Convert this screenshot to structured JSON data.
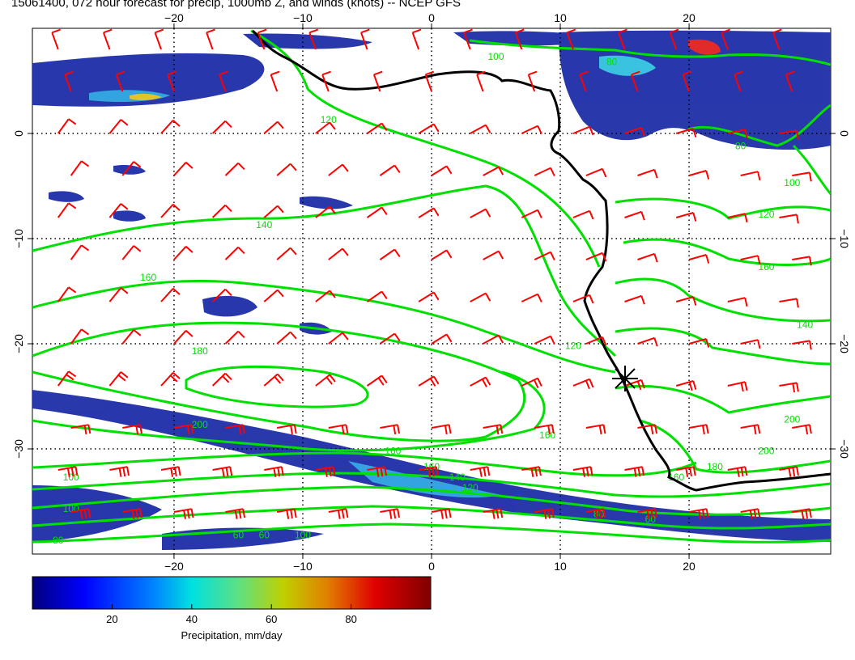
{
  "title": "15061400, 072 hour forecast for precip, 1000mb Z, and winds (knots) -- NCEP GFS",
  "map": {
    "lon_range": [
      -31,
      31
    ],
    "lat_range": [
      -40,
      10
    ],
    "x_ticks": [
      -20,
      -10,
      0,
      10,
      20
    ],
    "y_ticks": [
      0,
      -10,
      -20,
      -30
    ],
    "x_tick_labels": [
      "−20",
      "−10",
      "0",
      "10",
      "20"
    ],
    "y_tick_labels": [
      "0",
      "−10",
      "−20",
      "−30"
    ],
    "grid": "dotted",
    "coastline_color": "#000000",
    "contour_color": "#00e000",
    "wind_barb_color": "#ff0000",
    "marker": {
      "type": "star",
      "lon": 15,
      "lat": -23.5
    }
  },
  "contours": {
    "labels": [
      {
        "text": "120",
        "lon": -8,
        "lat": 1
      },
      {
        "text": "140",
        "lon": -13,
        "lat": -9
      },
      {
        "text": "160",
        "lon": -22,
        "lat": -14
      },
      {
        "text": "180",
        "lon": -18,
        "lat": -21
      },
      {
        "text": "200",
        "lon": -18,
        "lat": -28
      },
      {
        "text": "160",
        "lon": 9,
        "lat": -29
      },
      {
        "text": "120",
        "lon": 11,
        "lat": -20.5
      },
      {
        "text": "160",
        "lon": -3,
        "lat": -30.5
      },
      {
        "text": "160",
        "lon": 0,
        "lat": -32
      },
      {
        "text": "140",
        "lon": 2,
        "lat": -33
      },
      {
        "text": "120",
        "lon": 3,
        "lat": -34
      },
      {
        "text": "100",
        "lon": -28,
        "lat": -33
      },
      {
        "text": "100",
        "lon": -28,
        "lat": -36
      },
      {
        "text": "80",
        "lon": -29,
        "lat": -39
      },
      {
        "text": "60",
        "lon": -15,
        "lat": -38.5
      },
      {
        "text": "60",
        "lon": -13,
        "lat": -38.5
      },
      {
        "text": "100",
        "lon": -10,
        "lat": -38.5
      },
      {
        "text": "80",
        "lon": 13,
        "lat": -36.5
      },
      {
        "text": "60",
        "lon": 17,
        "lat": -37
      },
      {
        "text": "160",
        "lon": 19,
        "lat": -33
      },
      {
        "text": "180",
        "lon": 22,
        "lat": -32
      },
      {
        "text": "200",
        "lon": 26,
        "lat": -30.5
      },
      {
        "text": "200",
        "lon": 28,
        "lat": -27.5
      },
      {
        "text": "160",
        "lon": 26,
        "lat": -13
      },
      {
        "text": "140",
        "lon": 29,
        "lat": -18.5
      },
      {
        "text": "120",
        "lon": 26,
        "lat": -8
      },
      {
        "text": "100",
        "lon": 28,
        "lat": -5
      },
      {
        "text": "80",
        "lon": 24,
        "lat": -1.5
      },
      {
        "text": "100",
        "lon": 5,
        "lat": 7
      },
      {
        "text": "80",
        "lon": 14,
        "lat": 6.5
      }
    ]
  },
  "colorbar": {
    "label": "Precipitation, mm/day",
    "ticks": [
      20,
      40,
      60,
      80
    ],
    "tick_labels": [
      "20",
      "40",
      "60",
      "80"
    ],
    "range": [
      0,
      100
    ],
    "colors": [
      "#00007f",
      "#0000ff",
      "#0080ff",
      "#00e0e0",
      "#60e080",
      "#c0d000",
      "#e08000",
      "#e00000",
      "#7f0000"
    ]
  }
}
